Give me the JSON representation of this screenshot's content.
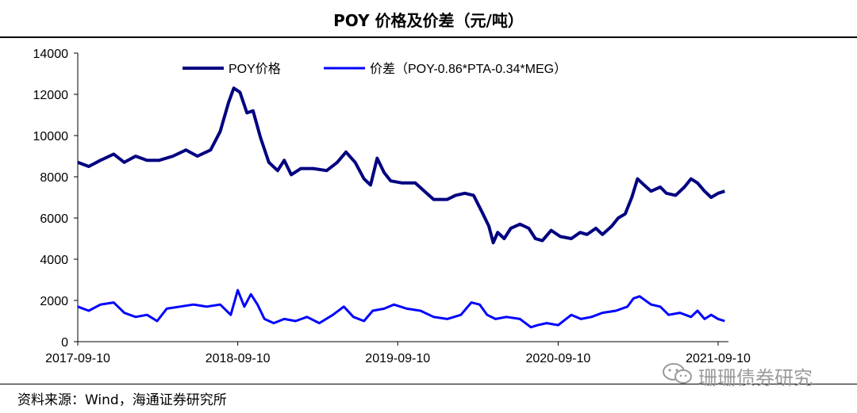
{
  "title": "POY 价格及价差（元/吨）",
  "source": "资料来源：Wind，海通证券研究所",
  "watermark": "珊珊债券研究",
  "chart_data": {
    "type": "line",
    "title": "POY 价格及价差（元/吨）",
    "xlabel": "",
    "ylabel": "",
    "ylim": [
      0,
      14000
    ],
    "yticks": [
      0,
      2000,
      4000,
      6000,
      8000,
      10000,
      12000,
      14000
    ],
    "x_ticks": [
      "2017-09-10",
      "2018-09-10",
      "2019-09-10",
      "2020-09-10",
      "2021-09-10"
    ],
    "x_range": [
      "2017-09-10",
      "2021-09-30"
    ],
    "grid": false,
    "legend": "top-center",
    "series": [
      {
        "name": "POY价格",
        "color": "#000080",
        "points": [
          [
            "2017-09-10",
            8700
          ],
          [
            "2017-10-05",
            8500
          ],
          [
            "2017-11-01",
            8800
          ],
          [
            "2017-12-01",
            9100
          ],
          [
            "2017-12-25",
            8700
          ],
          [
            "2018-01-20",
            9000
          ],
          [
            "2018-02-15",
            8800
          ],
          [
            "2018-03-15",
            8800
          ],
          [
            "2018-04-15",
            9000
          ],
          [
            "2018-05-15",
            9300
          ],
          [
            "2018-06-10",
            9000
          ],
          [
            "2018-07-10",
            9300
          ],
          [
            "2018-08-01",
            10200
          ],
          [
            "2018-08-20",
            11600
          ],
          [
            "2018-09-01",
            12300
          ],
          [
            "2018-09-15",
            12100
          ],
          [
            "2018-10-01",
            11100
          ],
          [
            "2018-10-15",
            11200
          ],
          [
            "2018-11-01",
            9900
          ],
          [
            "2018-11-20",
            8700
          ],
          [
            "2018-12-10",
            8300
          ],
          [
            "2018-12-25",
            8800
          ],
          [
            "2019-01-10",
            8100
          ],
          [
            "2019-02-01",
            8400
          ],
          [
            "2019-03-01",
            8400
          ],
          [
            "2019-04-01",
            8300
          ],
          [
            "2019-04-25",
            8700
          ],
          [
            "2019-05-15",
            9200
          ],
          [
            "2019-06-05",
            8700
          ],
          [
            "2019-06-25",
            7900
          ],
          [
            "2019-07-10",
            7600
          ],
          [
            "2019-07-25",
            8900
          ],
          [
            "2019-08-10",
            8200
          ],
          [
            "2019-08-25",
            7800
          ],
          [
            "2019-09-20",
            7700
          ],
          [
            "2019-10-20",
            7700
          ],
          [
            "2019-11-10",
            7300
          ],
          [
            "2019-12-01",
            6900
          ],
          [
            "2020-01-01",
            6900
          ],
          [
            "2020-01-20",
            7100
          ],
          [
            "2020-02-10",
            7200
          ],
          [
            "2020-03-01",
            7100
          ],
          [
            "2020-03-20",
            6300
          ],
          [
            "2020-04-05",
            5600
          ],
          [
            "2020-04-15",
            4800
          ],
          [
            "2020-04-25",
            5300
          ],
          [
            "2020-05-10",
            5000
          ],
          [
            "2020-05-25",
            5500
          ],
          [
            "2020-06-15",
            5700
          ],
          [
            "2020-07-05",
            5500
          ],
          [
            "2020-07-20",
            5000
          ],
          [
            "2020-08-05",
            4900
          ],
          [
            "2020-08-25",
            5400
          ],
          [
            "2020-09-15",
            5100
          ],
          [
            "2020-10-10",
            5000
          ],
          [
            "2020-10-30",
            5300
          ],
          [
            "2020-11-15",
            5200
          ],
          [
            "2020-12-05",
            5500
          ],
          [
            "2020-12-20",
            5200
          ],
          [
            "2021-01-10",
            5600
          ],
          [
            "2021-01-25",
            6000
          ],
          [
            "2021-02-10",
            6200
          ],
          [
            "2021-02-25",
            7000
          ],
          [
            "2021-03-10",
            7900
          ],
          [
            "2021-03-25",
            7600
          ],
          [
            "2021-04-10",
            7300
          ],
          [
            "2021-05-01",
            7500
          ],
          [
            "2021-05-15",
            7200
          ],
          [
            "2021-06-05",
            7100
          ],
          [
            "2021-06-25",
            7500
          ],
          [
            "2021-07-10",
            7900
          ],
          [
            "2021-07-25",
            7700
          ],
          [
            "2021-08-10",
            7300
          ],
          [
            "2021-08-25",
            7000
          ],
          [
            "2021-09-10",
            7200
          ],
          [
            "2021-09-25",
            7300
          ]
        ]
      },
      {
        "name": "价差（POY-0.86*PTA-0.34*MEG）",
        "color": "#0000ff",
        "points": [
          [
            "2017-09-10",
            1700
          ],
          [
            "2017-10-05",
            1500
          ],
          [
            "2017-11-01",
            1800
          ],
          [
            "2017-12-01",
            1900
          ],
          [
            "2017-12-25",
            1400
          ],
          [
            "2018-01-20",
            1200
          ],
          [
            "2018-02-15",
            1300
          ],
          [
            "2018-03-10",
            1000
          ],
          [
            "2018-04-01",
            1600
          ],
          [
            "2018-05-01",
            1700
          ],
          [
            "2018-06-01",
            1800
          ],
          [
            "2018-07-01",
            1700
          ],
          [
            "2018-08-01",
            1800
          ],
          [
            "2018-08-25",
            1300
          ],
          [
            "2018-09-10",
            2500
          ],
          [
            "2018-09-25",
            1700
          ],
          [
            "2018-10-10",
            2300
          ],
          [
            "2018-10-25",
            1800
          ],
          [
            "2018-11-10",
            1100
          ],
          [
            "2018-12-01",
            900
          ],
          [
            "2018-12-25",
            1100
          ],
          [
            "2019-01-20",
            1000
          ],
          [
            "2019-02-15",
            1200
          ],
          [
            "2019-03-15",
            900
          ],
          [
            "2019-04-15",
            1300
          ],
          [
            "2019-05-10",
            1700
          ],
          [
            "2019-06-01",
            1200
          ],
          [
            "2019-06-25",
            1000
          ],
          [
            "2019-07-15",
            1500
          ],
          [
            "2019-08-10",
            1600
          ],
          [
            "2019-09-01",
            1800
          ],
          [
            "2019-10-01",
            1600
          ],
          [
            "2019-11-01",
            1500
          ],
          [
            "2019-12-01",
            1200
          ],
          [
            "2020-01-01",
            1100
          ],
          [
            "2020-02-01",
            1300
          ],
          [
            "2020-02-25",
            1900
          ],
          [
            "2020-03-15",
            1800
          ],
          [
            "2020-04-01",
            1300
          ],
          [
            "2020-04-20",
            1100
          ],
          [
            "2020-05-15",
            1200
          ],
          [
            "2020-06-15",
            1100
          ],
          [
            "2020-07-10",
            700
          ],
          [
            "2020-07-25",
            800
          ],
          [
            "2020-08-15",
            900
          ],
          [
            "2020-09-10",
            800
          ],
          [
            "2020-10-10",
            1300
          ],
          [
            "2020-11-01",
            1100
          ],
          [
            "2020-11-25",
            1200
          ],
          [
            "2020-12-20",
            1400
          ],
          [
            "2021-01-20",
            1500
          ],
          [
            "2021-02-15",
            1700
          ],
          [
            "2021-03-01",
            2100
          ],
          [
            "2021-03-15",
            2200
          ],
          [
            "2021-04-10",
            1800
          ],
          [
            "2021-05-01",
            1700
          ],
          [
            "2021-05-20",
            1300
          ],
          [
            "2021-06-15",
            1400
          ],
          [
            "2021-07-10",
            1200
          ],
          [
            "2021-07-25",
            1500
          ],
          [
            "2021-08-10",
            1100
          ],
          [
            "2021-08-25",
            1300
          ],
          [
            "2021-09-10",
            1100
          ],
          [
            "2021-09-25",
            1000
          ]
        ]
      }
    ]
  }
}
